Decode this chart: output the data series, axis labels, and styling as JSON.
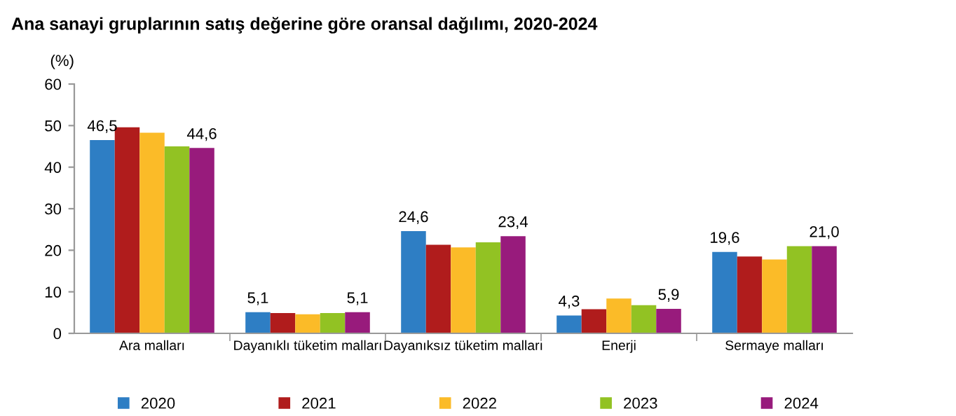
{
  "chart_data": {
    "type": "bar",
    "title": "Ana sanayi gruplarının satış değerine göre oransal dağılımı, 2020-2024",
    "ylabel": "(%)",
    "categories": [
      "Ara malları",
      "Dayanıklı tüketim malları",
      "Dayanıksız tüketim malları",
      "Enerji",
      "Sermaye malları"
    ],
    "series": [
      {
        "name": "2020",
        "color": "#2e7ec4",
        "values": [
          46.5,
          5.1,
          24.6,
          4.3,
          19.6
        ],
        "value_labels": [
          "46,5",
          "5,1",
          "24,6",
          "4,3",
          "19,6"
        ]
      },
      {
        "name": "2021",
        "color": "#b01c1c",
        "values": [
          49.6,
          4.9,
          21.3,
          5.8,
          18.5
        ]
      },
      {
        "name": "2022",
        "color": "#fbbb28",
        "values": [
          48.3,
          4.6,
          20.7,
          8.4,
          17.8
        ]
      },
      {
        "name": "2023",
        "color": "#92c223",
        "values": [
          45.0,
          4.9,
          21.9,
          6.8,
          21.0
        ]
      },
      {
        "name": "2024",
        "color": "#981b7c",
        "values": [
          44.6,
          5.1,
          23.4,
          5.9,
          21.0
        ],
        "value_labels": [
          "44,6",
          "5,1",
          "23,4",
          "5,9",
          "21,0"
        ]
      }
    ],
    "ylim": [
      0,
      60
    ],
    "yticks": [
      0,
      10,
      20,
      30,
      40,
      50,
      60
    ],
    "grid": false,
    "legend": "bottom"
  }
}
